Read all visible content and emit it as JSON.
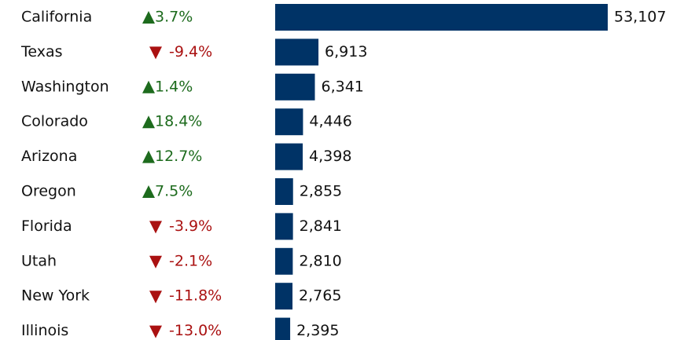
{
  "chart_data": {
    "type": "bar",
    "orientation": "horizontal",
    "categories": [
      "California",
      "Texas",
      "Washington",
      "Colorado",
      "Arizona",
      "Oregon",
      "Florida",
      "Utah",
      "New York",
      "Illinois"
    ],
    "values": [
      53107,
      6913,
      6341,
      4446,
      4398,
      2855,
      2841,
      2810,
      2765,
      2395
    ],
    "value_labels": [
      "53,107",
      "6,913",
      "6,341",
      "4,446",
      "4,398",
      "2,855",
      "2,841",
      "2,810",
      "2,765",
      "2,395"
    ],
    "changes": [
      3.7,
      -9.4,
      1.4,
      18.4,
      12.7,
      7.5,
      -3.9,
      -2.1,
      -11.8,
      -13.0
    ],
    "change_labels": [
      "3.7%",
      "-9.4%",
      "1.4%",
      "18.4%",
      "12.7%",
      "7.5%",
      "-3.9%",
      "-2.1%",
      "-11.8%",
      "-13.0%"
    ],
    "color": "#003366",
    "up_color": "#1d6b1d",
    "down_color": "#aa1111"
  }
}
